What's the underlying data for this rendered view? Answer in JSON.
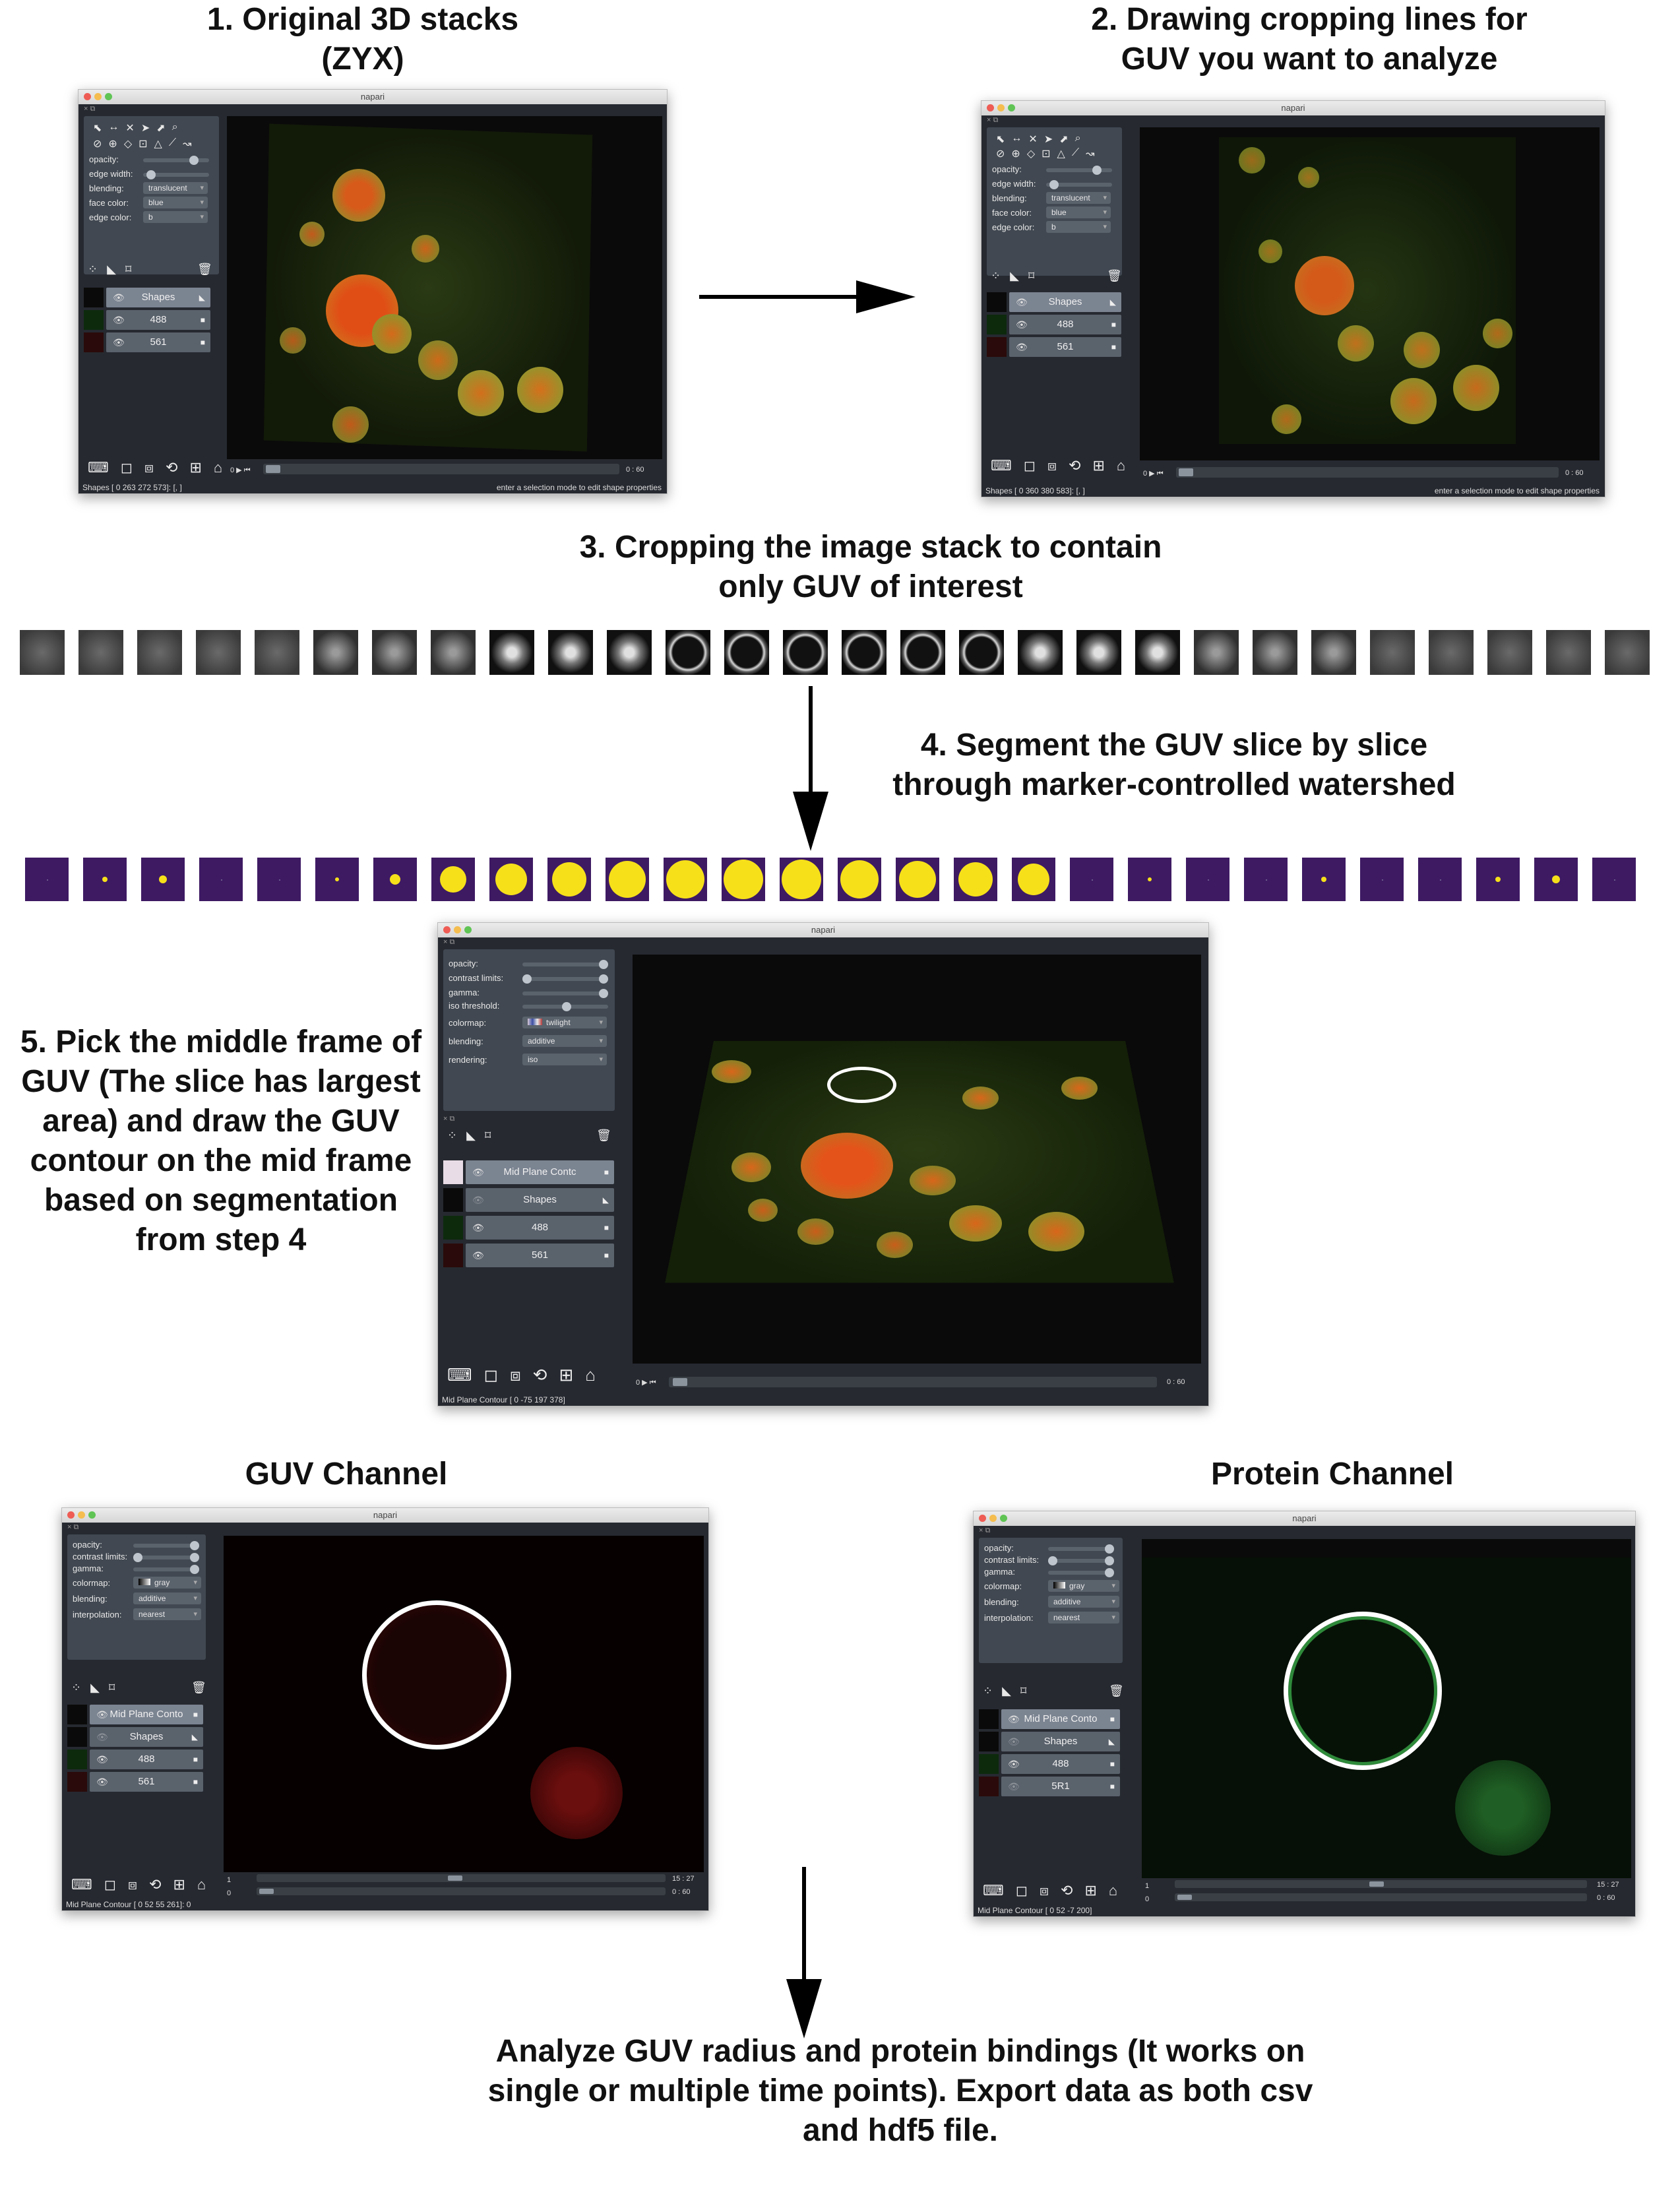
{
  "steps": {
    "s1": "1. Original 3D stacks\n(ZYX)",
    "s2": "2. Drawing cropping lines for\nGUV you want to analyze",
    "s3": "3. Cropping the image stack to contain\nonly GUV of interest",
    "s4": "4. Segment the GUV slice by slice\nthrough marker-controlled watershed",
    "s5": "5. Pick the middle frame of\nGUV (The slice has largest\narea) and draw the GUV\ncontour on the mid frame\nbased on segmentation\nfrom step 4",
    "guv_channel": "GUV Channel",
    "protein_channel": "Protein Channel",
    "final": "Analyze GUV radius and protein bindings (It works on\nsingle or multiple time points). Export data as both csv\nand hdf5 file."
  },
  "app_title": "napari",
  "shapes_panel": {
    "opacity": "opacity:",
    "edge_width": "edge width:",
    "blending": "blending:",
    "blending_value": "translucent",
    "face_color": "face color:",
    "face_color_value": "blue",
    "edge_color": "edge color:",
    "edge_color_value": "b"
  },
  "image_panel": {
    "opacity": "opacity:",
    "contrast_limits": "contrast limits:",
    "gamma": "gamma:",
    "iso_threshold": "iso threshold:",
    "colormap": "colormap:",
    "colormap_value_twilight": "twilight",
    "colormap_value_gray": "gray",
    "blending": "blending:",
    "blending_value": "additive",
    "rendering": "rendering:",
    "rendering_value": "iso",
    "interpolation": "interpolation:",
    "interpolation_value": "nearest"
  },
  "layers": {
    "shapes": "Shapes",
    "ch488": "488",
    "ch561": "561",
    "ch561_w5": "5R1",
    "mid_plane_short": "Mid Plane Conto",
    "mid_plane_contour": "Mid Plane Contc"
  },
  "status": {
    "w1": "Shapes [  0 263 272 573]: [, ]",
    "w1_right": "enter a selection mode to edit shape properties",
    "w2": "Shapes [  0 360 380 583]: [, ]",
    "w2_right": "enter a selection mode to edit shape properties",
    "w3": "Mid Plane Contour [  0 -75 197 378]",
    "w4": "Mid Plane Contour [  0  52  55 261]: 0",
    "w5": "Mid Plane Contour [  0  52  -7 200]"
  },
  "slider_labels": {
    "zero": "0",
    "w1_end": "0 : 60",
    "w2_end": "0 : 60",
    "w3_end": "0 : 60",
    "w4_top_start": "1",
    "w4_top_end": "15 : 27",
    "w4_bot_end": "0 : 60",
    "w5_top_start": "1",
    "w5_top_end": "15 : 27",
    "w5_bot_end": "0 : 60"
  },
  "colors": {
    "napari_bg": "#262930",
    "seg_background": "#3e1a63",
    "seg_foreground": "#f6e01a"
  },
  "icons": [
    "terminal-icon",
    "square-icon",
    "cube-icon",
    "rotate-icon",
    "grid-icon",
    "home-icon",
    "eye-icon",
    "trash-icon",
    "points-icon",
    "shapes-icon",
    "labels-icon"
  ]
}
